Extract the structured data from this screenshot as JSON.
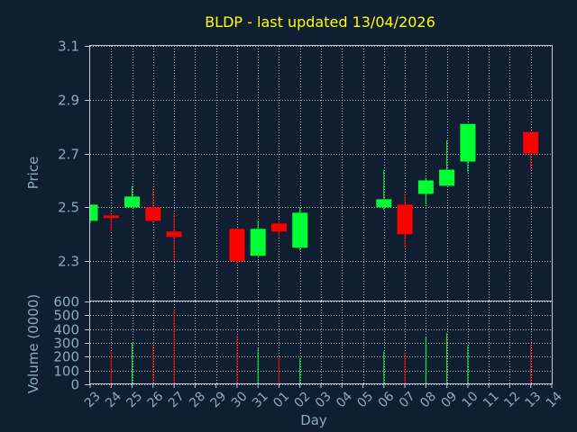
{
  "chart_data": [
    {
      "type": "candlestick",
      "title": "BLDP - last updated 13/04/2026",
      "ylabel": "Price",
      "ylim": [
        2.15,
        3.1
      ],
      "yticks": [
        "2.3",
        "2.5",
        "2.7",
        "2.9",
        "3.1"
      ],
      "x_tick_labels": [
        "23",
        "24",
        "25",
        "26",
        "27",
        "28",
        "29",
        "30",
        "31",
        "01",
        "02",
        "03",
        "04",
        "05",
        "06",
        "07",
        "08",
        "09",
        "10",
        "11",
        "12",
        "13",
        "14"
      ],
      "grid": true,
      "up_color": "#00ff33",
      "down_color": "#ff0000",
      "candles": [
        {
          "day": "23",
          "open": 2.45,
          "high": 2.51,
          "low": 2.44,
          "close": 2.51
        },
        {
          "day": "24",
          "open": 2.47,
          "high": 2.48,
          "low": 2.41,
          "close": 2.46
        },
        {
          "day": "25",
          "open": 2.5,
          "high": 2.58,
          "low": 2.5,
          "close": 2.54
        },
        {
          "day": "26",
          "open": 2.5,
          "high": 2.57,
          "low": 2.44,
          "close": 2.45
        },
        {
          "day": "27",
          "open": 2.41,
          "high": 2.48,
          "low": 2.3,
          "close": 2.39
        },
        {
          "day": "30",
          "open": 2.42,
          "high": 2.42,
          "low": 2.29,
          "close": 2.3
        },
        {
          "day": "31",
          "open": 2.32,
          "high": 2.45,
          "low": 2.32,
          "close": 2.42
        },
        {
          "day": "01",
          "open": 2.44,
          "high": 2.45,
          "low": 2.39,
          "close": 2.41
        },
        {
          "day": "02",
          "open": 2.35,
          "high": 2.5,
          "low": 2.34,
          "close": 2.48
        },
        {
          "day": "06",
          "open": 2.5,
          "high": 2.64,
          "low": 2.49,
          "close": 2.53
        },
        {
          "day": "07",
          "open": 2.51,
          "high": 2.55,
          "low": 2.35,
          "close": 2.4
        },
        {
          "day": "08",
          "open": 2.55,
          "high": 2.61,
          "low": 2.51,
          "close": 2.6
        },
        {
          "day": "09",
          "open": 2.58,
          "high": 2.75,
          "low": 2.58,
          "close": 2.64
        },
        {
          "day": "10",
          "open": 2.67,
          "high": 2.81,
          "low": 2.63,
          "close": 2.81
        },
        {
          "day": "13",
          "open": 2.78,
          "high": 2.78,
          "low": 2.64,
          "close": 2.7
        }
      ]
    },
    {
      "type": "bar",
      "ylabel": "Volume (0000)",
      "xlabel": "Day",
      "ylim": [
        0,
        600
      ],
      "yticks": [
        "0",
        "100",
        "200",
        "300",
        "400",
        "500",
        "600"
      ],
      "grid": true,
      "volumes": [
        {
          "day": "24",
          "value": 240,
          "color": "#ff0000"
        },
        {
          "day": "25",
          "value": 300,
          "color": "#00ff33"
        },
        {
          "day": "26",
          "value": 280,
          "color": "#ff0000"
        },
        {
          "day": "27",
          "value": 540,
          "color": "#ff0000"
        },
        {
          "day": "30",
          "value": 350,
          "color": "#ff0000"
        },
        {
          "day": "31",
          "value": 260,
          "color": "#00ff33"
        },
        {
          "day": "01",
          "value": 200,
          "color": "#ff0000"
        },
        {
          "day": "02",
          "value": 190,
          "color": "#00ff33"
        },
        {
          "day": "06",
          "value": 240,
          "color": "#00ff33"
        },
        {
          "day": "07",
          "value": 230,
          "color": "#ff0000"
        },
        {
          "day": "08",
          "value": 340,
          "color": "#00ff33"
        },
        {
          "day": "09",
          "value": 370,
          "color": "#00ff33"
        },
        {
          "day": "10",
          "value": 280,
          "color": "#00ff33"
        },
        {
          "day": "13",
          "value": 290,
          "color": "#ff0000"
        }
      ]
    }
  ]
}
